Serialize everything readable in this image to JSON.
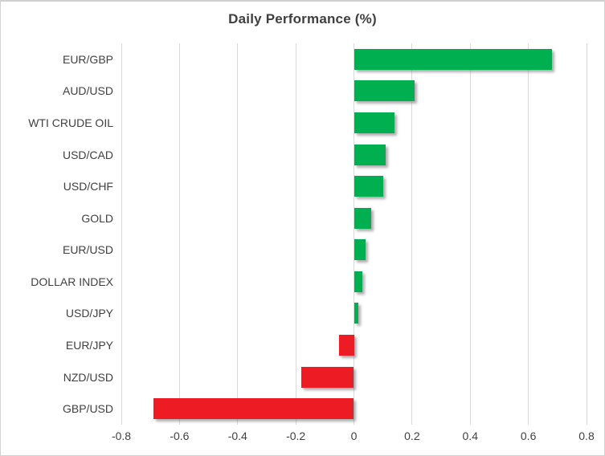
{
  "title": "Daily Performance (%)",
  "colors": {
    "positive": "#00b050",
    "negative": "#ed1c24",
    "grid": "#d9d9d9",
    "text": "#404040",
    "frame_border": "#d2d2d2"
  },
  "chart_data": {
    "type": "bar",
    "orientation": "horizontal",
    "title": "Daily Performance (%)",
    "xlabel": "",
    "ylabel": "",
    "categories": [
      "EUR/GBP",
      "AUD/USD",
      "WTI CRUDE OIL",
      "USD/CAD",
      "USD/CHF",
      "GOLD",
      "EUR/USD",
      "DOLLAR INDEX",
      "USD/JPY",
      "EUR/JPY",
      "NZD/USD",
      "GBP/USD"
    ],
    "values": [
      0.68,
      0.21,
      0.14,
      0.11,
      0.1,
      0.06,
      0.04,
      0.03,
      0.015,
      -0.05,
      -0.18,
      -0.69
    ],
    "xlim": [
      -0.8,
      0.8
    ],
    "xtick_values": [
      -0.8,
      -0.6,
      -0.4,
      -0.2,
      0,
      0.2,
      0.4,
      0.6,
      0.8
    ],
    "xtick_labels": [
      "-0.8",
      "-0.6",
      "-0.4",
      "-0.2",
      "0",
      "0.2",
      "0.4",
      "0.6",
      "0.8"
    ],
    "grid": "vertical-only",
    "legend": "none",
    "bar_color_rule": "green if positive, red if negative"
  }
}
